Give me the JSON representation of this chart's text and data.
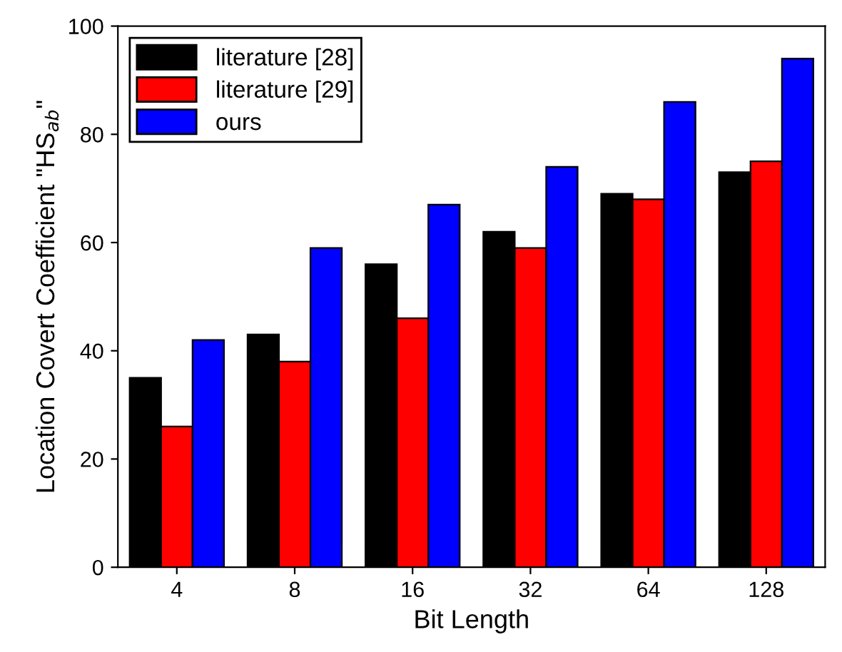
{
  "chart_data": {
    "type": "bar",
    "xlabel": "Bit Length",
    "ylabel": "Location Covert Coefficient \"HS$_{ab}$\"",
    "categories": [
      "4",
      "8",
      "16",
      "32",
      "64",
      "128"
    ],
    "series": [
      {
        "name": "literature [28]",
        "color": "#000000",
        "values": [
          35,
          43,
          56,
          62,
          69,
          73
        ]
      },
      {
        "name": "literature [29]",
        "color": "#ff0000",
        "values": [
          26,
          38,
          46,
          59,
          68,
          75
        ]
      },
      {
        "name": "ours",
        "color": "#0000ff",
        "values": [
          42,
          59,
          67,
          74,
          86,
          94
        ]
      }
    ],
    "ylim": [
      0,
      100
    ],
    "yticks": [
      0,
      20,
      40,
      60,
      80,
      100
    ],
    "grid": false,
    "legend": "top left"
  }
}
